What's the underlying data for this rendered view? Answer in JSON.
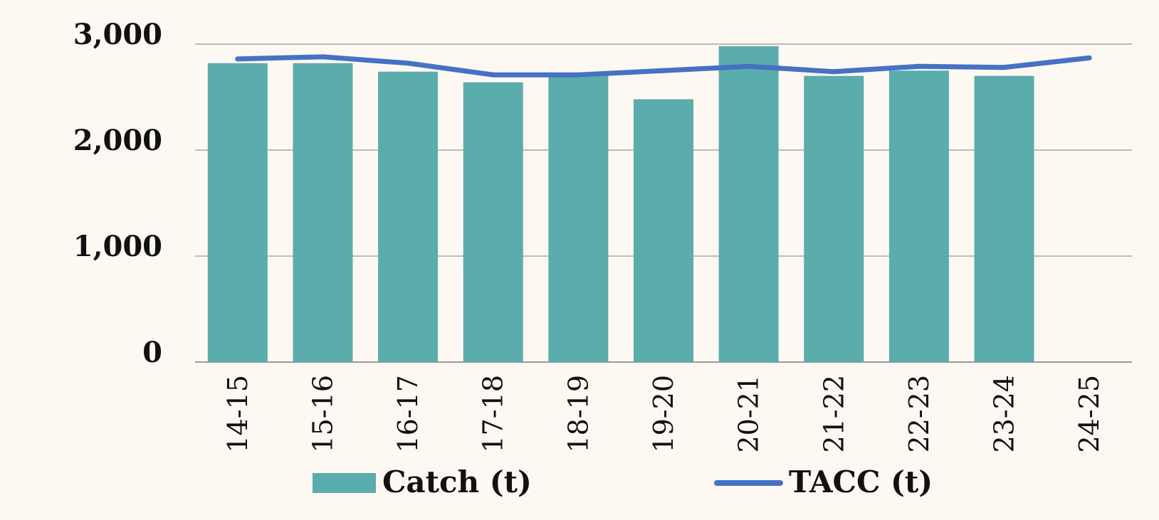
{
  "chart_data": {
    "type": "bar",
    "categories": [
      "14-15",
      "15-16",
      "16-17",
      "17-18",
      "18-19",
      "19-20",
      "20-21",
      "21-22",
      "22-23",
      "23-24",
      "24-25"
    ],
    "series": [
      {
        "name": "Catch (t)",
        "type": "bar",
        "color": "#5bacac",
        "values": [
          2820,
          2820,
          2740,
          2640,
          2730,
          2480,
          2980,
          2700,
          2750,
          2700,
          null
        ]
      },
      {
        "name": "TACC (t)",
        "type": "line",
        "color": "#4472c4",
        "values": [
          2860,
          2880,
          2820,
          2710,
          2710,
          2750,
          2790,
          2740,
          2790,
          2780,
          2870
        ]
      }
    ],
    "yticks": [
      "0",
      "1,000",
      "2,000",
      "3,000"
    ],
    "ylim": [
      0,
      3000
    ],
    "grid": true,
    "legend": "bottom",
    "title": "",
    "xlabel": "",
    "ylabel": ""
  }
}
